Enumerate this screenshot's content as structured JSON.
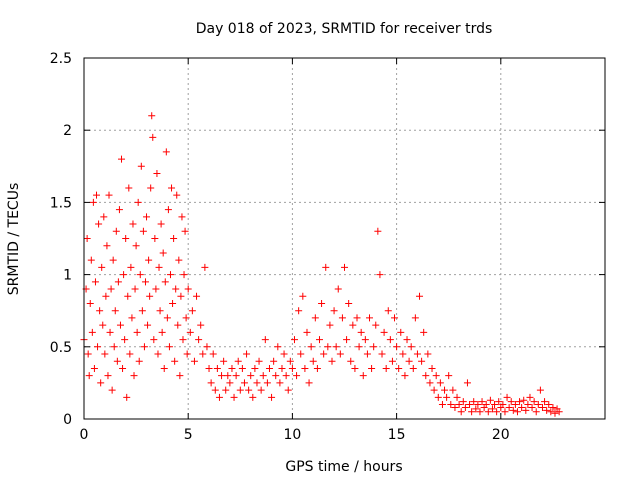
{
  "chart_data": {
    "type": "scatter",
    "title": "Day 018 of 2023, SRMTID for receiver trds",
    "xlabel": "GPS time / hours",
    "ylabel": "SRMTID / TECUs",
    "xlim": [
      0,
      25
    ],
    "ylim": [
      0,
      2.5
    ],
    "x_ticks": [
      0,
      5,
      10,
      15,
      20
    ],
    "x_tick_labels": [
      "0",
      "5",
      "10",
      "15",
      "20"
    ],
    "y_ticks": [
      0,
      0.5,
      1,
      1.5,
      2,
      2.5
    ],
    "y_tick_labels": [
      "0",
      "0.5",
      "1",
      "1.5",
      "2",
      "2.5"
    ],
    "grid": true,
    "marker": "+",
    "series": [
      {
        "name": "SRMTID",
        "color": "#ff0000",
        "points": [
          [
            0.0,
            0.55
          ],
          [
            0.1,
            0.9
          ],
          [
            0.15,
            1.25
          ],
          [
            0.2,
            0.45
          ],
          [
            0.25,
            0.3
          ],
          [
            0.3,
            0.8
          ],
          [
            0.35,
            1.1
          ],
          [
            0.4,
            0.6
          ],
          [
            0.45,
            1.5
          ],
          [
            0.5,
            0.35
          ],
          [
            0.55,
            0.95
          ],
          [
            0.6,
            1.55
          ],
          [
            0.65,
            0.5
          ],
          [
            0.7,
            1.35
          ],
          [
            0.75,
            0.75
          ],
          [
            0.8,
            0.25
          ],
          [
            0.85,
            1.05
          ],
          [
            0.9,
            0.65
          ],
          [
            0.95,
            1.4
          ],
          [
            1.0,
            0.45
          ],
          [
            1.05,
            0.85
          ],
          [
            1.1,
            1.2
          ],
          [
            1.15,
            0.3
          ],
          [
            1.2,
            1.55
          ],
          [
            1.25,
            0.6
          ],
          [
            1.3,
            0.9
          ],
          [
            1.35,
            0.2
          ],
          [
            1.4,
            1.1
          ],
          [
            1.45,
            0.5
          ],
          [
            1.5,
            0.75
          ],
          [
            1.55,
            1.3
          ],
          [
            1.6,
            0.4
          ],
          [
            1.65,
            0.95
          ],
          [
            1.7,
            1.45
          ],
          [
            1.75,
            0.65
          ],
          [
            1.8,
            1.8
          ],
          [
            1.85,
            0.35
          ],
          [
            1.9,
            1.0
          ],
          [
            1.95,
            0.55
          ],
          [
            2.0,
            1.25
          ],
          [
            2.05,
            0.15
          ],
          [
            2.1,
            0.85
          ],
          [
            2.15,
            1.6
          ],
          [
            2.2,
            0.45
          ],
          [
            2.25,
            1.05
          ],
          [
            2.3,
            0.7
          ],
          [
            2.35,
            1.35
          ],
          [
            2.4,
            0.3
          ],
          [
            2.45,
            0.9
          ],
          [
            2.5,
            1.2
          ],
          [
            2.55,
            0.6
          ],
          [
            2.6,
            1.5
          ],
          [
            2.65,
            0.4
          ],
          [
            2.7,
            1.0
          ],
          [
            2.75,
            1.75
          ],
          [
            2.8,
            0.75
          ],
          [
            2.85,
            1.3
          ],
          [
            2.9,
            0.5
          ],
          [
            2.95,
            0.95
          ],
          [
            3.0,
            1.4
          ],
          [
            3.05,
            0.65
          ],
          [
            3.1,
            1.1
          ],
          [
            3.15,
            0.85
          ],
          [
            3.2,
            1.6
          ],
          [
            3.25,
            2.1
          ],
          [
            3.3,
            1.95
          ],
          [
            3.35,
            0.55
          ],
          [
            3.4,
            1.25
          ],
          [
            3.45,
            0.9
          ],
          [
            3.5,
            1.7
          ],
          [
            3.55,
            0.45
          ],
          [
            3.6,
            1.05
          ],
          [
            3.65,
            0.75
          ],
          [
            3.7,
            1.35
          ],
          [
            3.75,
            0.6
          ],
          [
            3.8,
            1.15
          ],
          [
            3.85,
            0.35
          ],
          [
            3.9,
            0.95
          ],
          [
            3.95,
            1.85
          ],
          [
            4.0,
            0.7
          ],
          [
            4.05,
            1.45
          ],
          [
            4.1,
            0.5
          ],
          [
            4.15,
            1.0
          ],
          [
            4.2,
            1.6
          ],
          [
            4.25,
            0.8
          ],
          [
            4.3,
            1.25
          ],
          [
            4.35,
            0.4
          ],
          [
            4.4,
            0.9
          ],
          [
            4.45,
            1.55
          ],
          [
            4.5,
            0.65
          ],
          [
            4.55,
            1.1
          ],
          [
            4.6,
            0.3
          ],
          [
            4.65,
            0.85
          ],
          [
            4.7,
            1.4
          ],
          [
            4.75,
            0.55
          ],
          [
            4.8,
            1.0
          ],
          [
            4.85,
            1.3
          ],
          [
            4.9,
            0.7
          ],
          [
            4.95,
            0.45
          ],
          [
            5.0,
            0.9
          ],
          [
            5.1,
            0.6
          ],
          [
            5.2,
            0.75
          ],
          [
            5.3,
            0.4
          ],
          [
            5.4,
            0.85
          ],
          [
            5.5,
            0.55
          ],
          [
            5.6,
            0.65
          ],
          [
            5.7,
            0.45
          ],
          [
            5.8,
            1.05
          ],
          [
            5.9,
            0.5
          ],
          [
            6.0,
            0.35
          ],
          [
            6.1,
            0.25
          ],
          [
            6.2,
            0.45
          ],
          [
            6.3,
            0.2
          ],
          [
            6.4,
            0.35
          ],
          [
            6.5,
            0.15
          ],
          [
            6.6,
            0.3
          ],
          [
            6.7,
            0.4
          ],
          [
            6.8,
            0.2
          ],
          [
            6.9,
            0.3
          ],
          [
            7.0,
            0.25
          ],
          [
            7.1,
            0.35
          ],
          [
            7.2,
            0.15
          ],
          [
            7.3,
            0.3
          ],
          [
            7.4,
            0.4
          ],
          [
            7.5,
            0.2
          ],
          [
            7.6,
            0.35
          ],
          [
            7.7,
            0.25
          ],
          [
            7.8,
            0.45
          ],
          [
            7.9,
            0.2
          ],
          [
            8.0,
            0.3
          ],
          [
            8.1,
            0.15
          ],
          [
            8.2,
            0.35
          ],
          [
            8.3,
            0.25
          ],
          [
            8.4,
            0.4
          ],
          [
            8.5,
            0.2
          ],
          [
            8.6,
            0.3
          ],
          [
            8.7,
            0.55
          ],
          [
            8.8,
            0.25
          ],
          [
            8.9,
            0.35
          ],
          [
            9.0,
            0.15
          ],
          [
            9.1,
            0.4
          ],
          [
            9.2,
            0.3
          ],
          [
            9.3,
            0.5
          ],
          [
            9.4,
            0.25
          ],
          [
            9.5,
            0.35
          ],
          [
            9.6,
            0.45
          ],
          [
            9.7,
            0.3
          ],
          [
            9.8,
            0.2
          ],
          [
            9.9,
            0.4
          ],
          [
            10.0,
            0.35
          ],
          [
            10.1,
            0.55
          ],
          [
            10.2,
            0.3
          ],
          [
            10.3,
            0.75
          ],
          [
            10.4,
            0.45
          ],
          [
            10.5,
            0.85
          ],
          [
            10.6,
            0.35
          ],
          [
            10.7,
            0.6
          ],
          [
            10.8,
            0.25
          ],
          [
            10.9,
            0.5
          ],
          [
            11.0,
            0.4
          ],
          [
            11.1,
            0.7
          ],
          [
            11.2,
            0.35
          ],
          [
            11.3,
            0.55
          ],
          [
            11.4,
            0.8
          ],
          [
            11.5,
            0.45
          ],
          [
            11.6,
            1.05
          ],
          [
            11.7,
            0.5
          ],
          [
            11.8,
            0.65
          ],
          [
            11.9,
            0.4
          ],
          [
            12.0,
            0.75
          ],
          [
            12.1,
            0.5
          ],
          [
            12.2,
            0.9
          ],
          [
            12.3,
            0.45
          ],
          [
            12.4,
            0.7
          ],
          [
            12.5,
            1.05
          ],
          [
            12.6,
            0.55
          ],
          [
            12.7,
            0.8
          ],
          [
            12.8,
            0.4
          ],
          [
            12.9,
            0.65
          ],
          [
            13.0,
            0.35
          ],
          [
            13.1,
            0.7
          ],
          [
            13.2,
            0.5
          ],
          [
            13.3,
            0.6
          ],
          [
            13.4,
            0.3
          ],
          [
            13.5,
            0.55
          ],
          [
            13.6,
            0.45
          ],
          [
            13.7,
            0.7
          ],
          [
            13.8,
            0.35
          ],
          [
            13.9,
            0.5
          ],
          [
            14.0,
            0.65
          ],
          [
            14.1,
            1.3
          ],
          [
            14.2,
            1.0
          ],
          [
            14.3,
            0.45
          ],
          [
            14.4,
            0.6
          ],
          [
            14.5,
            0.35
          ],
          [
            14.6,
            0.75
          ],
          [
            14.7,
            0.55
          ],
          [
            14.8,
            0.4
          ],
          [
            14.9,
            0.7
          ],
          [
            15.0,
            0.5
          ],
          [
            15.1,
            0.35
          ],
          [
            15.2,
            0.6
          ],
          [
            15.3,
            0.45
          ],
          [
            15.4,
            0.3
          ],
          [
            15.5,
            0.55
          ],
          [
            15.6,
            0.4
          ],
          [
            15.7,
            0.5
          ],
          [
            15.8,
            0.35
          ],
          [
            15.9,
            0.7
          ],
          [
            16.0,
            0.45
          ],
          [
            16.1,
            0.85
          ],
          [
            16.2,
            0.4
          ],
          [
            16.3,
            0.6
          ],
          [
            16.4,
            0.3
          ],
          [
            16.5,
            0.45
          ],
          [
            16.6,
            0.25
          ],
          [
            16.7,
            0.35
          ],
          [
            16.8,
            0.2
          ],
          [
            16.9,
            0.3
          ],
          [
            17.0,
            0.15
          ],
          [
            17.1,
            0.25
          ],
          [
            17.2,
            0.1
          ],
          [
            17.3,
            0.2
          ],
          [
            17.4,
            0.15
          ],
          [
            17.5,
            0.3
          ],
          [
            17.6,
            0.1
          ],
          [
            17.7,
            0.2
          ],
          [
            17.8,
            0.08
          ],
          [
            17.9,
            0.15
          ],
          [
            18.0,
            0.1
          ],
          [
            18.1,
            0.05
          ],
          [
            18.2,
            0.12
          ],
          [
            18.3,
            0.08
          ],
          [
            18.4,
            0.25
          ],
          [
            18.5,
            0.1
          ],
          [
            18.6,
            0.05
          ],
          [
            18.7,
            0.12
          ],
          [
            18.8,
            0.07
          ],
          [
            18.9,
            0.1
          ],
          [
            19.0,
            0.05
          ],
          [
            19.1,
            0.12
          ],
          [
            19.2,
            0.08
          ],
          [
            19.3,
            0.1
          ],
          [
            19.4,
            0.05
          ],
          [
            19.5,
            0.13
          ],
          [
            19.6,
            0.07
          ],
          [
            19.7,
            0.1
          ],
          [
            19.8,
            0.05
          ],
          [
            19.9,
            0.12
          ],
          [
            20.0,
            0.08
          ],
          [
            20.1,
            0.1
          ],
          [
            20.2,
            0.05
          ],
          [
            20.3,
            0.15
          ],
          [
            20.4,
            0.08
          ],
          [
            20.5,
            0.12
          ],
          [
            20.6,
            0.06
          ],
          [
            20.7,
            0.1
          ],
          [
            20.8,
            0.05
          ],
          [
            20.9,
            0.12
          ],
          [
            21.0,
            0.08
          ],
          [
            21.1,
            0.13
          ],
          [
            21.2,
            0.06
          ],
          [
            21.3,
            0.1
          ],
          [
            21.4,
            0.15
          ],
          [
            21.5,
            0.08
          ],
          [
            21.6,
            0.12
          ],
          [
            21.7,
            0.05
          ],
          [
            21.8,
            0.1
          ],
          [
            21.9,
            0.2
          ],
          [
            22.0,
            0.08
          ],
          [
            22.1,
            0.12
          ],
          [
            22.2,
            0.06
          ],
          [
            22.3,
            0.1
          ],
          [
            22.4,
            0.05
          ],
          [
            22.5,
            0.08
          ],
          [
            22.6,
            0.04
          ],
          [
            22.7,
            0.07
          ],
          [
            22.8,
            0.05
          ]
        ]
      }
    ]
  }
}
